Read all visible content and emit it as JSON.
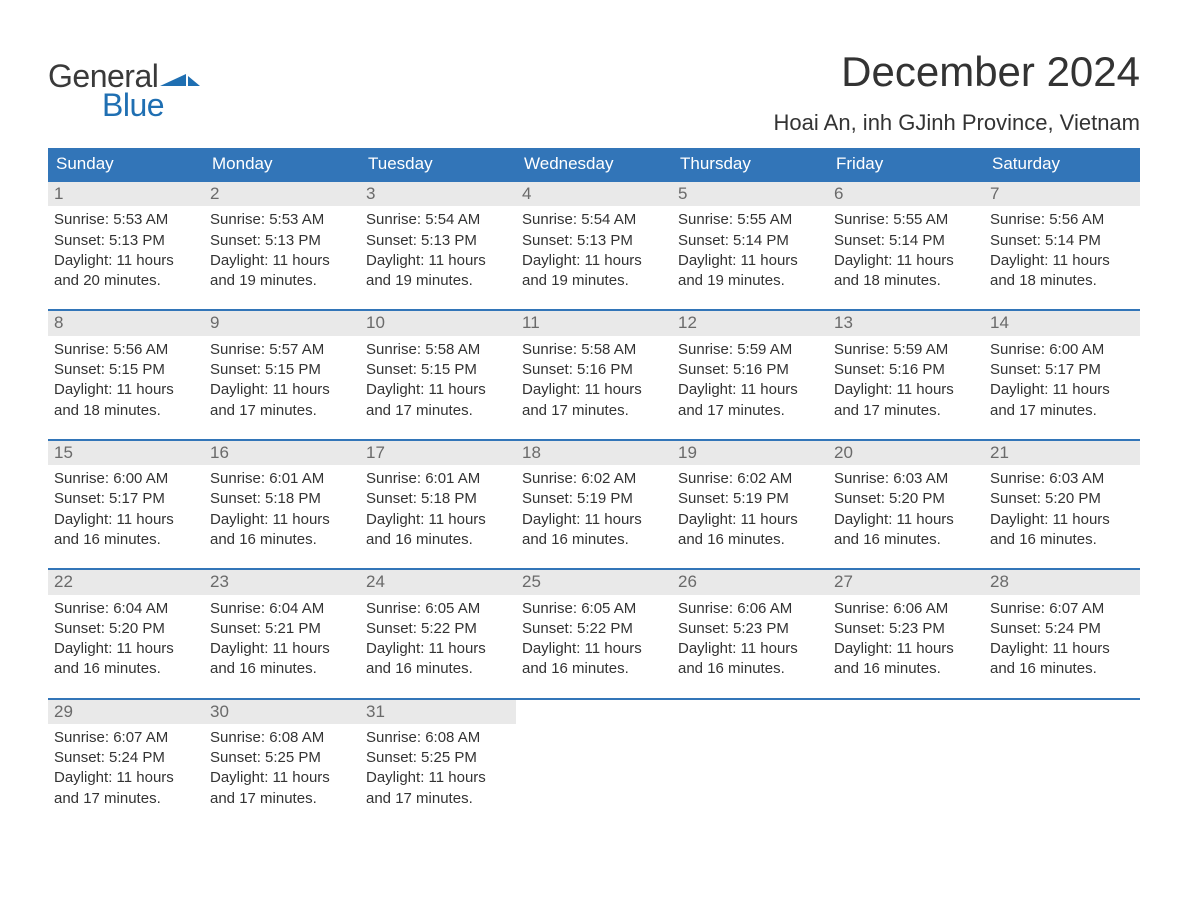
{
  "brand": {
    "word1": "General",
    "word2": "Blue",
    "text_color_general": "#3a3a3a",
    "text_color_blue": "#1f6fb2",
    "arrow_color": "#1f6fb2"
  },
  "title": "December 2024",
  "location": "Hoai An, inh GJinh Province, Vietnam",
  "colors": {
    "header_bg": "#3275b8",
    "header_text": "#ffffff",
    "daynum_bg": "#e9e9e9",
    "daynum_text": "#6a6a6a",
    "body_text": "#333333",
    "week_border": "#3275b8",
    "page_bg": "#ffffff"
  },
  "weekdays": [
    "Sunday",
    "Monday",
    "Tuesday",
    "Wednesday",
    "Thursday",
    "Friday",
    "Saturday"
  ],
  "labels": {
    "sunrise": "Sunrise:",
    "sunset": "Sunset:",
    "daylight": "Daylight:"
  },
  "weeks": [
    [
      {
        "day": "1",
        "sunrise": "5:53 AM",
        "sunset": "5:13 PM",
        "daylight_hours": "11 hours",
        "daylight_min": "and 20 minutes."
      },
      {
        "day": "2",
        "sunrise": "5:53 AM",
        "sunset": "5:13 PM",
        "daylight_hours": "11 hours",
        "daylight_min": "and 19 minutes."
      },
      {
        "day": "3",
        "sunrise": "5:54 AM",
        "sunset": "5:13 PM",
        "daylight_hours": "11 hours",
        "daylight_min": "and 19 minutes."
      },
      {
        "day": "4",
        "sunrise": "5:54 AM",
        "sunset": "5:13 PM",
        "daylight_hours": "11 hours",
        "daylight_min": "and 19 minutes."
      },
      {
        "day": "5",
        "sunrise": "5:55 AM",
        "sunset": "5:14 PM",
        "daylight_hours": "11 hours",
        "daylight_min": "and 19 minutes."
      },
      {
        "day": "6",
        "sunrise": "5:55 AM",
        "sunset": "5:14 PM",
        "daylight_hours": "11 hours",
        "daylight_min": "and 18 minutes."
      },
      {
        "day": "7",
        "sunrise": "5:56 AM",
        "sunset": "5:14 PM",
        "daylight_hours": "11 hours",
        "daylight_min": "and 18 minutes."
      }
    ],
    [
      {
        "day": "8",
        "sunrise": "5:56 AM",
        "sunset": "5:15 PM",
        "daylight_hours": "11 hours",
        "daylight_min": "and 18 minutes."
      },
      {
        "day": "9",
        "sunrise": "5:57 AM",
        "sunset": "5:15 PM",
        "daylight_hours": "11 hours",
        "daylight_min": "and 17 minutes."
      },
      {
        "day": "10",
        "sunrise": "5:58 AM",
        "sunset": "5:15 PM",
        "daylight_hours": "11 hours",
        "daylight_min": "and 17 minutes."
      },
      {
        "day": "11",
        "sunrise": "5:58 AM",
        "sunset": "5:16 PM",
        "daylight_hours": "11 hours",
        "daylight_min": "and 17 minutes."
      },
      {
        "day": "12",
        "sunrise": "5:59 AM",
        "sunset": "5:16 PM",
        "daylight_hours": "11 hours",
        "daylight_min": "and 17 minutes."
      },
      {
        "day": "13",
        "sunrise": "5:59 AM",
        "sunset": "5:16 PM",
        "daylight_hours": "11 hours",
        "daylight_min": "and 17 minutes."
      },
      {
        "day": "14",
        "sunrise": "6:00 AM",
        "sunset": "5:17 PM",
        "daylight_hours": "11 hours",
        "daylight_min": "and 17 minutes."
      }
    ],
    [
      {
        "day": "15",
        "sunrise": "6:00 AM",
        "sunset": "5:17 PM",
        "daylight_hours": "11 hours",
        "daylight_min": "and 16 minutes."
      },
      {
        "day": "16",
        "sunrise": "6:01 AM",
        "sunset": "5:18 PM",
        "daylight_hours": "11 hours",
        "daylight_min": "and 16 minutes."
      },
      {
        "day": "17",
        "sunrise": "6:01 AM",
        "sunset": "5:18 PM",
        "daylight_hours": "11 hours",
        "daylight_min": "and 16 minutes."
      },
      {
        "day": "18",
        "sunrise": "6:02 AM",
        "sunset": "5:19 PM",
        "daylight_hours": "11 hours",
        "daylight_min": "and 16 minutes."
      },
      {
        "day": "19",
        "sunrise": "6:02 AM",
        "sunset": "5:19 PM",
        "daylight_hours": "11 hours",
        "daylight_min": "and 16 minutes."
      },
      {
        "day": "20",
        "sunrise": "6:03 AM",
        "sunset": "5:20 PM",
        "daylight_hours": "11 hours",
        "daylight_min": "and 16 minutes."
      },
      {
        "day": "21",
        "sunrise": "6:03 AM",
        "sunset": "5:20 PM",
        "daylight_hours": "11 hours",
        "daylight_min": "and 16 minutes."
      }
    ],
    [
      {
        "day": "22",
        "sunrise": "6:04 AM",
        "sunset": "5:20 PM",
        "daylight_hours": "11 hours",
        "daylight_min": "and 16 minutes."
      },
      {
        "day": "23",
        "sunrise": "6:04 AM",
        "sunset": "5:21 PM",
        "daylight_hours": "11 hours",
        "daylight_min": "and 16 minutes."
      },
      {
        "day": "24",
        "sunrise": "6:05 AM",
        "sunset": "5:22 PM",
        "daylight_hours": "11 hours",
        "daylight_min": "and 16 minutes."
      },
      {
        "day": "25",
        "sunrise": "6:05 AM",
        "sunset": "5:22 PM",
        "daylight_hours": "11 hours",
        "daylight_min": "and 16 minutes."
      },
      {
        "day": "26",
        "sunrise": "6:06 AM",
        "sunset": "5:23 PM",
        "daylight_hours": "11 hours",
        "daylight_min": "and 16 minutes."
      },
      {
        "day": "27",
        "sunrise": "6:06 AM",
        "sunset": "5:23 PM",
        "daylight_hours": "11 hours",
        "daylight_min": "and 16 minutes."
      },
      {
        "day": "28",
        "sunrise": "6:07 AM",
        "sunset": "5:24 PM",
        "daylight_hours": "11 hours",
        "daylight_min": "and 16 minutes."
      }
    ],
    [
      {
        "day": "29",
        "sunrise": "6:07 AM",
        "sunset": "5:24 PM",
        "daylight_hours": "11 hours",
        "daylight_min": "and 17 minutes."
      },
      {
        "day": "30",
        "sunrise": "6:08 AM",
        "sunset": "5:25 PM",
        "daylight_hours": "11 hours",
        "daylight_min": "and 17 minutes."
      },
      {
        "day": "31",
        "sunrise": "6:08 AM",
        "sunset": "5:25 PM",
        "daylight_hours": "11 hours",
        "daylight_min": "and 17 minutes."
      },
      null,
      null,
      null,
      null
    ]
  ]
}
